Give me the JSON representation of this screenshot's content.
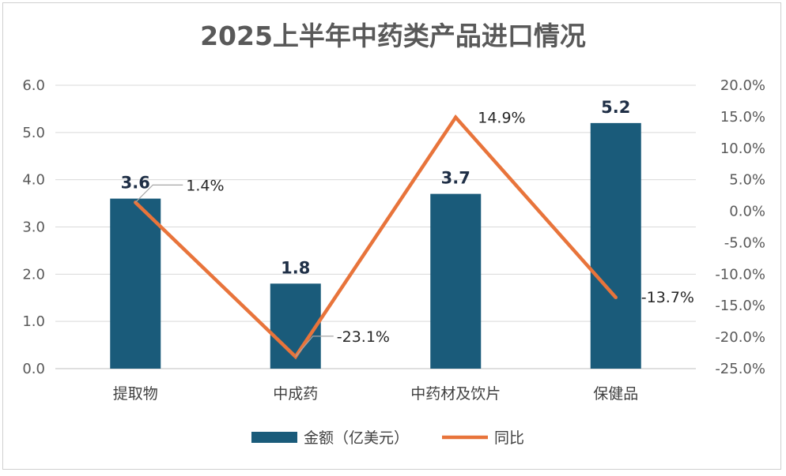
{
  "chart_data": {
    "type": "bar",
    "title": "2025上半年中药类产品进口情况",
    "categories": [
      "提取物",
      "中成药",
      "中药材及饮片",
      "保健品"
    ],
    "series": [
      {
        "name": "金额（亿美元）",
        "type": "bar",
        "axis": "left",
        "values": [
          3.6,
          1.8,
          3.7,
          5.2
        ],
        "color": "#1a5b7a"
      },
      {
        "name": "同比",
        "type": "line",
        "axis": "right",
        "values": [
          1.4,
          -23.1,
          14.9,
          -13.7
        ],
        "color": "#e8743b"
      }
    ],
    "bar_labels": [
      "3.6",
      "1.8",
      "3.7",
      "5.2"
    ],
    "line_labels": [
      "1.4%",
      "-23.1%",
      "14.9%",
      "-13.7%"
    ],
    "y_left": {
      "min": 0,
      "max": 6,
      "step": 1,
      "ticks": [
        "0.0",
        "1.0",
        "2.0",
        "3.0",
        "4.0",
        "5.0",
        "6.0"
      ]
    },
    "y_right": {
      "min": -25,
      "max": 20,
      "step": 5,
      "ticks": [
        "-25.0%",
        "-20.0%",
        "-15.0%",
        "-10.0%",
        "-5.0%",
        "0.0%",
        "5.0%",
        "10.0%",
        "15.0%",
        "20.0%"
      ]
    },
    "grid": true,
    "legend_position": "bottom"
  }
}
